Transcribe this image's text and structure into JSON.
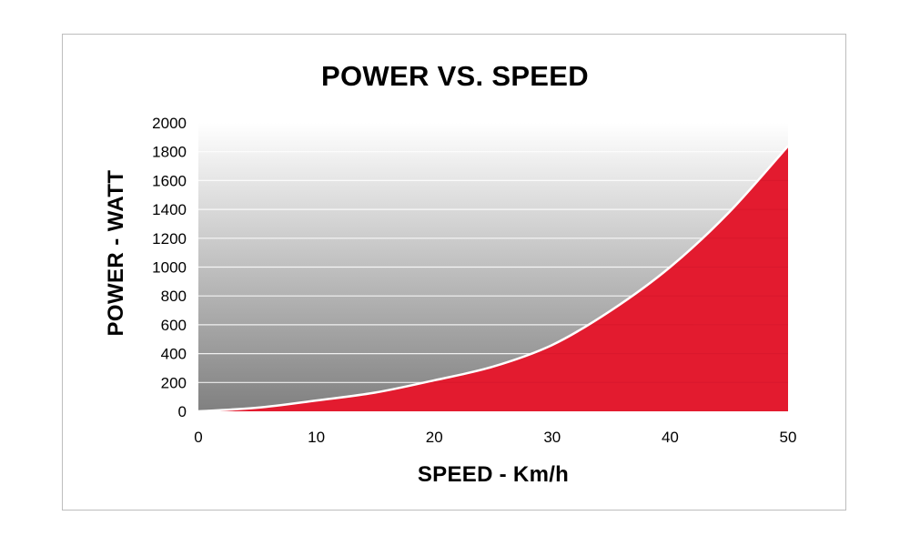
{
  "chart_data": {
    "type": "area",
    "title": "POWER VS. SPEED",
    "xlabel": "SPEED - Km/h",
    "ylabel": "POWER - WATT",
    "xlim": [
      0,
      50
    ],
    "ylim": [
      0,
      2000
    ],
    "x_ticks": [
      "0",
      "10",
      "20",
      "30",
      "40",
      "50"
    ],
    "y_ticks": [
      "0",
      "200",
      "400",
      "600",
      "800",
      "1000",
      "1200",
      "1400",
      "1600",
      "1800",
      "2000"
    ],
    "grid": "horizontal",
    "x": [
      0,
      5,
      10,
      15,
      20,
      25,
      30,
      35,
      40,
      45,
      50
    ],
    "y": [
      0,
      25,
      75,
      130,
      215,
      310,
      460,
      700,
      1000,
      1380,
      1840
    ],
    "colors": {
      "fill": "#e31b2f",
      "line": "#ffffff",
      "background_top": "#ffffff",
      "background_bottom": "#808080",
      "grid": "#ffffff"
    }
  }
}
